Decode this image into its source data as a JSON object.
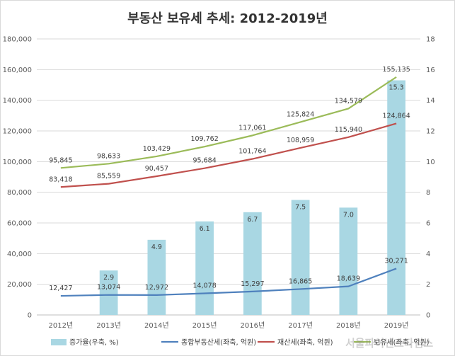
{
  "chart_data": {
    "type": "bar",
    "title": "부동산 보유세 추세: 2012-2019년",
    "categories": [
      "2012년",
      "2013년",
      "2014년",
      "2015년",
      "2016년",
      "2017년",
      "2018년",
      "2019년"
    ],
    "left_axis": {
      "range": [
        0,
        180000
      ],
      "ticks": [
        "0",
        "20,000",
        "40,000",
        "60,000",
        "80,000",
        "100,000",
        "120,000",
        "140,000",
        "160,000",
        "180,000"
      ]
    },
    "right_axis": {
      "range": [
        0,
        18
      ],
      "ticks": [
        "0",
        "2",
        "4",
        "6",
        "8",
        "10",
        "12",
        "14",
        "16",
        "18"
      ]
    },
    "grid": true,
    "legend_position": "bottom",
    "bar_series": {
      "name": "증가율(우축, %)",
      "axis": "right",
      "color": "#a9d7e3",
      "values": [
        null,
        2.9,
        4.9,
        6.1,
        6.7,
        7.5,
        7.0,
        15.3
      ],
      "labels": [
        "",
        "2.9",
        "4.9",
        "6.1",
        "6.7",
        "7.5",
        "7.0",
        "15.3"
      ]
    },
    "line_series": [
      {
        "name": "종합부동산세(좌축, 억원)",
        "axis": "left",
        "color": "#4f81bd",
        "values": [
          12427,
          13074,
          12972,
          14078,
          15297,
          16865,
          18639,
          30271
        ],
        "labels": [
          "12,427",
          "13,074",
          "12,972",
          "14,078",
          "15,297",
          "16,865",
          "18,639",
          "30,271"
        ]
      },
      {
        "name": "재산세(좌축, 억원)",
        "axis": "left",
        "color": "#c0504d",
        "values": [
          83418,
          85559,
          90457,
          95684,
          101764,
          108959,
          115940,
          124864
        ],
        "labels": [
          "83,418",
          "85,559",
          "90,457",
          "95,684",
          "101,764",
          "108,959",
          "115,940",
          "124,864"
        ]
      },
      {
        "name": "보유세(좌축, 억원)",
        "axis": "left",
        "color": "#9bbb59",
        "values": [
          95845,
          98633,
          103429,
          109762,
          117061,
          125824,
          134579,
          155135
        ],
        "labels": [
          "95,845",
          "98,633",
          "103,429",
          "109,762",
          "117,061",
          "125,824",
          "134,579",
          "155,135"
        ]
      }
    ]
  },
  "watermark": "서울파이낸스타임스"
}
